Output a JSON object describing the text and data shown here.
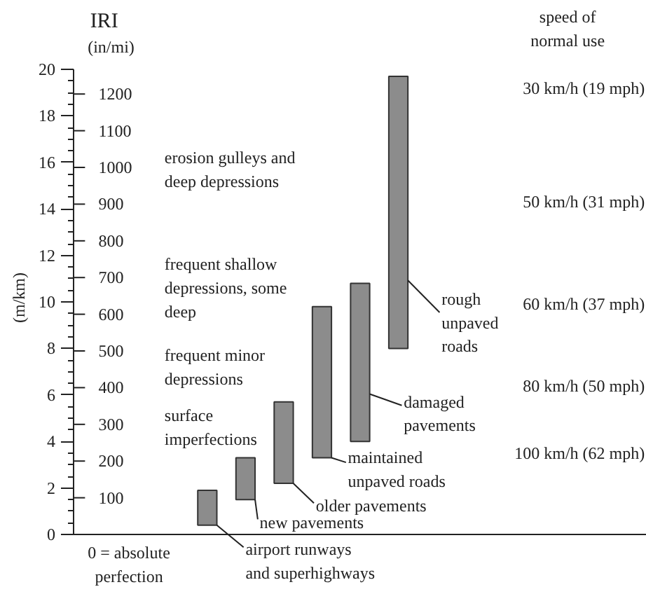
{
  "chart_data": {
    "type": "bar",
    "title": "IRI",
    "ylabel": "(m/km)",
    "y2label": "(in/mi)",
    "categories": [
      null,
      null,
      null,
      null,
      null,
      null,
      null,
      null,
      null,
      null,
      null,
      null,
      null,
      null,
      null
    ],
    "base": [
      null,
      null,
      null,
      0.4,
      1.5,
      2.2,
      3.3,
      4.0,
      8.0,
      null,
      null,
      null,
      null,
      null,
      null
    ],
    "values": [
      null,
      null,
      null,
      1.5,
      1.8,
      3.5,
      6.5,
      6.8,
      11.7,
      null,
      null,
      null,
      null,
      null,
      null
    ],
    "color": "#8c8c8c",
    "ylim": [
      0,
      20
    ],
    "yticks": [
      0,
      2,
      4,
      6,
      8,
      10,
      12,
      14,
      16,
      18,
      20
    ],
    "y2lim": [
      0,
      1267.2
    ],
    "y2ticks": [
      100,
      200,
      300,
      400,
      500,
      600,
      700,
      800,
      900,
      1000,
      1100,
      1200
    ],
    "grid": false,
    "annotations": [
      "airport runways\nand superhighways",
      "new pavements",
      "older pavements",
      "maintained\nunpaved roads",
      "damaged\npavements",
      "rough\nunpaved\nroads",
      "erosion gulleys and\ndeep depressions",
      "frequent shallow\ndepressions, some\ndeep",
      "frequent minor\ndepressions",
      "surface\nimperfections",
      "30 km/h (19 mph)",
      "50 km/h (31 mph)",
      "60 km/h (37 mph)",
      "80 km/h (50 mph)",
      "100 km/h (62 mph)",
      "0 = absolute\nperfection",
      "speed of\nnormal use"
    ]
  }
}
